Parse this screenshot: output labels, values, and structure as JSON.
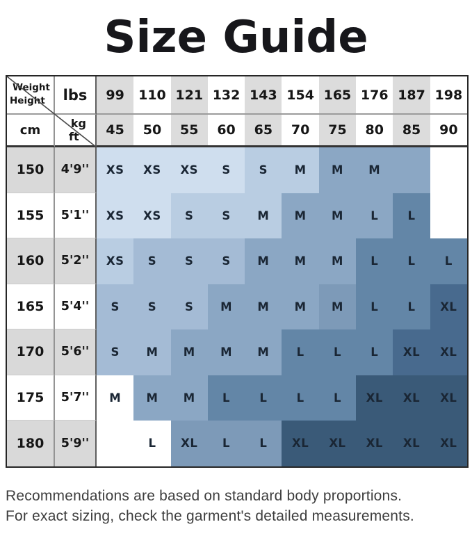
{
  "title": "Size Guide",
  "chart_data": {
    "type": "heatmap",
    "title": "Size Guide",
    "axis": {
      "weight_label": "Weight",
      "height_label": "Height",
      "lbs_label": "lbs",
      "cm_label": "cm",
      "kg_label": "kg",
      "ft_label": "ft"
    },
    "weights_lbs": [
      "99",
      "110",
      "121",
      "132",
      "143",
      "154",
      "165",
      "176",
      "187",
      "198"
    ],
    "weights_kg": [
      "45",
      "50",
      "55",
      "60",
      "65",
      "70",
      "75",
      "80",
      "85",
      "90"
    ],
    "size_scale": [
      "XS",
      "S",
      "M",
      "L",
      "XL"
    ],
    "rows": [
      {
        "cm": "150",
        "ft": "4'9''",
        "labels": [
          "XS",
          "XS",
          "XS",
          "S",
          "S",
          "M",
          "M",
          "M",
          "",
          ""
        ],
        "shades": [
          1,
          1,
          1,
          1,
          2,
          2,
          4,
          4,
          4,
          0
        ]
      },
      {
        "cm": "155",
        "ft": "5'1''",
        "labels": [
          "XS",
          "XS",
          "S",
          "S",
          "M",
          "M",
          "M",
          "L",
          "L",
          ""
        ],
        "shades": [
          1,
          1,
          2,
          2,
          2,
          4,
          4,
          4,
          6,
          0
        ]
      },
      {
        "cm": "160",
        "ft": "5'2''",
        "labels": [
          "XS",
          "S",
          "S",
          "S",
          "M",
          "M",
          "M",
          "L",
          "L",
          "L"
        ],
        "shades": [
          2,
          3,
          3,
          3,
          4,
          4,
          4,
          6,
          6,
          6
        ]
      },
      {
        "cm": "165",
        "ft": "5'4''",
        "labels": [
          "S",
          "S",
          "S",
          "M",
          "M",
          "M",
          "M",
          "L",
          "L",
          "XL"
        ],
        "shades": [
          3,
          3,
          3,
          4,
          4,
          4,
          5,
          6,
          6,
          7
        ]
      },
      {
        "cm": "170",
        "ft": "5'6''",
        "labels": [
          "S",
          "M",
          "M",
          "M",
          "M",
          "L",
          "L",
          "L",
          "XL",
          "XL"
        ],
        "shades": [
          3,
          3,
          4,
          4,
          4,
          6,
          6,
          6,
          7,
          7
        ]
      },
      {
        "cm": "175",
        "ft": "5'7''",
        "labels": [
          "M",
          "M",
          "M",
          "L",
          "L",
          "L",
          "L",
          "XL",
          "XL",
          "XL"
        ],
        "shades": [
          0,
          4,
          4,
          6,
          6,
          6,
          6,
          8,
          8,
          8
        ]
      },
      {
        "cm": "180",
        "ft": "5'9''",
        "labels": [
          "",
          "L",
          "XL",
          "L",
          "L",
          "XL",
          "XL",
          "XL",
          "XL",
          "XL"
        ],
        "shades": [
          0,
          0,
          5,
          5,
          5,
          8,
          8,
          8,
          8,
          8
        ]
      }
    ],
    "shade_palette": [
      "#ffffff",
      "#cfdeee",
      "#b9cde2",
      "#a4bbd5",
      "#8ba7c4",
      "#7d9ab8",
      "#6386a7",
      "#486a8e",
      "#3a5a78"
    ],
    "legend_note": "cell color darkens from XS (lightest blue) to XL (dark navy)"
  },
  "colors": {
    "header_col_gray": "#dcdcdc",
    "row_gray": "#d9d9d9",
    "cell_text": "#1a2634",
    "title_text": "#17171b",
    "border_dark": "#262626"
  },
  "footer": {
    "line1": "Recommendations are based on standard body proportions.",
    "line2": "For exact sizing, check the garment's detailed measurements."
  }
}
